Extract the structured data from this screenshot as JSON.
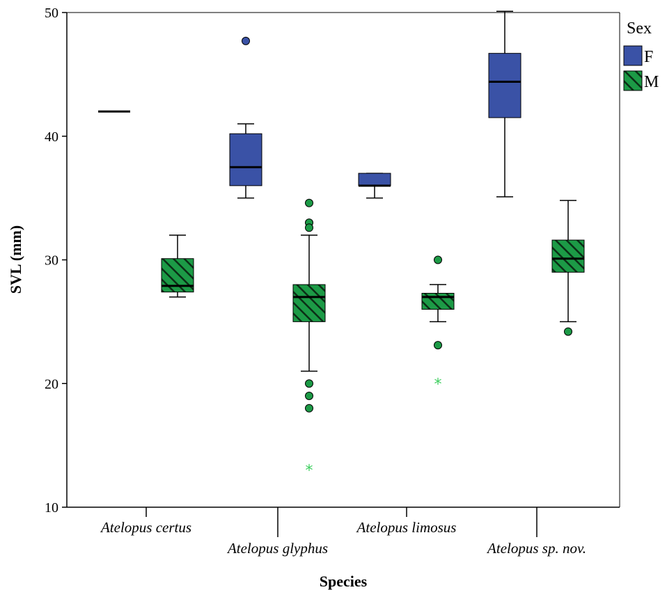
{
  "chart_data": {
    "type": "boxplot",
    "title": "",
    "xlabel": "Species",
    "ylabel": "SVL (mm)",
    "ylim": [
      10,
      50
    ],
    "yticks": [
      10,
      20,
      30,
      40,
      50
    ],
    "grid": false,
    "legend_title": "Sex",
    "legend_position": "top-right",
    "categories": [
      "Atelopus certus",
      "Atelopus glyphus",
      "Atelopus limosus",
      "Atelopus sp. nov."
    ],
    "series": [
      {
        "name": "F",
        "color": "#3a52a6",
        "pattern": "solid",
        "boxes": [
          {
            "category": "Atelopus certus",
            "whisker_low": 42,
            "q1": 42,
            "median": 42,
            "q3": 42,
            "whisker_high": 42,
            "outliers": [],
            "extremes": []
          },
          {
            "category": "Atelopus glyphus",
            "whisker_low": 35,
            "q1": 36,
            "median": 37.5,
            "q3": 40.2,
            "whisker_high": 41,
            "outliers": [
              47.7
            ],
            "extremes": []
          },
          {
            "category": "Atelopus limosus",
            "whisker_low": 35,
            "q1": 36,
            "median": 36,
            "q3": 37,
            "whisker_high": 37,
            "outliers": [],
            "extremes": []
          },
          {
            "category": "Atelopus sp. nov.",
            "whisker_low": 35.1,
            "q1": 41.5,
            "median": 44.4,
            "q3": 46.7,
            "whisker_high": 50.1,
            "outliers": [],
            "extremes": []
          }
        ]
      },
      {
        "name": "M",
        "color": "#1c9a46",
        "pattern": "hatched",
        "boxes": [
          {
            "category": "Atelopus certus",
            "whisker_low": 27,
            "q1": 27.4,
            "median": 27.9,
            "q3": 30.1,
            "whisker_high": 32,
            "outliers": [],
            "extremes": []
          },
          {
            "category": "Atelopus glyphus",
            "whisker_low": 21,
            "q1": 25,
            "median": 27,
            "q3": 28,
            "whisker_high": 32,
            "outliers": [
              34.6,
              33,
              32.6,
              20,
              19,
              18
            ],
            "extremes": [
              13
            ]
          },
          {
            "category": "Atelopus limosus",
            "whisker_low": 25,
            "q1": 26,
            "median": 27,
            "q3": 27.3,
            "whisker_high": 28,
            "outliers": [
              30,
              23.1
            ],
            "extremes": [
              20
            ]
          },
          {
            "category": "Atelopus sp. nov.",
            "whisker_low": 25,
            "q1": 29,
            "median": 30.1,
            "q3": 31.6,
            "whisker_high": 34.8,
            "outliers": [
              24.2
            ],
            "extremes": []
          }
        ]
      }
    ]
  }
}
